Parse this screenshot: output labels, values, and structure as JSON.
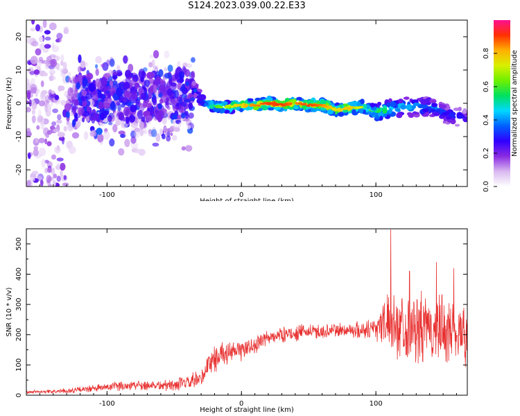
{
  "title": "S124.2023.039.00.22.E33",
  "chart_data": [
    {
      "type": "heatmap",
      "xlabel": "Height of straight line (km)",
      "ylabel": "Frequency (Hz)",
      "xlim": [
        -160,
        168
      ],
      "ylim": [
        -25,
        25
      ],
      "xticks": [
        -100,
        0,
        100
      ],
      "yticks": [
        -20,
        -10,
        0,
        10,
        20
      ],
      "colorbar": {
        "label": "Normalized spectral amplitude",
        "range": [
          0.0,
          1.0
        ],
        "ticks": [
          0.0,
          0.2,
          0.4,
          0.6,
          0.8
        ],
        "tick_labels": [
          "0.0",
          "0.2",
          "0.4",
          "0.6",
          "0.8"
        ],
        "colors": [
          "#ffffff",
          "#d9b8f0",
          "#8a2be2",
          "#3000ff",
          "#0060ff",
          "#00d8ff",
          "#00e060",
          "#6ef000",
          "#d8f000",
          "#ffb000",
          "#ff3000",
          "#ff1090"
        ]
      },
      "ridge": {
        "x": [
          -36,
          -30,
          -20,
          -10,
          0,
          10,
          20,
          30,
          40,
          50,
          60,
          70,
          80,
          90,
          100,
          110,
          120,
          130,
          140,
          150,
          160,
          168
        ],
        "y": [
          5,
          1,
          -1,
          -1,
          -0.5,
          -0.5,
          0,
          -0.5,
          0,
          -0.5,
          -0.5,
          -2,
          -1.5,
          -1,
          -2.5,
          -2,
          -1,
          -1,
          -1,
          -3,
          -4,
          -5
        ],
        "amplitude": [
          0.3,
          0.4,
          0.55,
          0.65,
          0.75,
          0.8,
          0.85,
          0.85,
          0.8,
          0.85,
          0.8,
          0.7,
          0.75,
          0.65,
          0.6,
          0.5,
          0.45,
          0.45,
          0.4,
          0.35,
          0.3,
          0.3
        ]
      },
      "noise_region": {
        "x": [
          -160,
          -36
        ],
        "amplitude": [
          0.05,
          0.25
        ]
      }
    },
    {
      "type": "line",
      "xlabel": "Height of straight line (km)",
      "ylabel": "SNR (10 * v/v)",
      "xlim": [
        -160,
        168
      ],
      "ylim": [
        0,
        550
      ],
      "xticks": [
        -100,
        0,
        100
      ],
      "yticks": [
        0,
        100,
        200,
        300,
        400,
        500
      ],
      "color": "#e83030",
      "series": [
        {
          "x": [
            -160,
            -150,
            -140,
            -130,
            -120,
            -110,
            -100,
            -90,
            -80,
            -70,
            -60,
            -50,
            -40,
            -30,
            -25,
            -20,
            -15,
            -10,
            0,
            10,
            20,
            25,
            30,
            40,
            50,
            60,
            70,
            80,
            90,
            100,
            105,
            110,
            115,
            120,
            130,
            140,
            150,
            160,
            168
          ],
          "y": [
            10,
            12,
            12,
            14,
            18,
            22,
            26,
            30,
            34,
            34,
            32,
            34,
            40,
            50,
            100,
            120,
            140,
            135,
            150,
            165,
            190,
            195,
            200,
            205,
            210,
            210,
            215,
            215,
            215,
            225,
            240,
            245,
            235,
            230,
            215,
            215,
            210,
            215,
            200
          ],
          "noise": [
            6,
            6,
            6,
            8,
            10,
            12,
            14,
            16,
            18,
            18,
            18,
            20,
            25,
            35,
            45,
            45,
            40,
            35,
            35,
            30,
            25,
            25,
            25,
            25,
            25,
            25,
            25,
            25,
            30,
            45,
            70,
            90,
            100,
            110,
            115,
            120,
            120,
            110,
            100
          ],
          "peaks": [
            {
              "x": 111,
              "y": 548
            },
            {
              "x": 125,
              "y": 410
            },
            {
              "x": 145,
              "y": 440
            },
            {
              "x": 158,
              "y": 420
            }
          ]
        }
      ]
    }
  ]
}
